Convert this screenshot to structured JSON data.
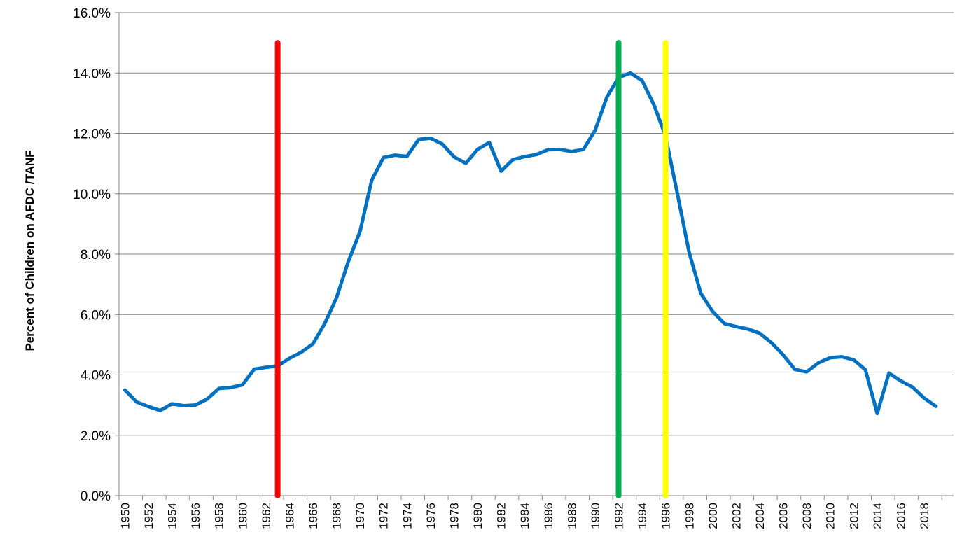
{
  "chart_data": {
    "type": "line",
    "title": "",
    "xlabel": "",
    "ylabel": "Percent of Children on AFDC /TANF",
    "ylim": [
      0,
      16
    ],
    "y_tick_values": [
      0,
      2,
      4,
      6,
      8,
      10,
      12,
      14,
      16
    ],
    "y_tick_labels": [
      "0.0%",
      "2.0%",
      "4.0%",
      "6.0%",
      "8.0%",
      "10.0%",
      "12.0%",
      "14.0%",
      "16.0%"
    ],
    "x_tick_labels": [
      "1950",
      "1952",
      "1954",
      "1956",
      "1958",
      "1960",
      "1962",
      "1964",
      "1966",
      "1968",
      "1970",
      "1972",
      "1974",
      "1976",
      "1978",
      "1980",
      "1982",
      "1984",
      "1986",
      "1988",
      "1990",
      "1992",
      "1994",
      "1996",
      "1998",
      "2000",
      "2002",
      "2004",
      "2006",
      "2008",
      "2010",
      "2012",
      "2014",
      "2016",
      "2018"
    ],
    "grid": "horizontal",
    "series": [
      {
        "color": "#0070C0",
        "x": [
          1950,
          1951,
          1952,
          1953,
          1954,
          1955,
          1956,
          1957,
          1958,
          1959,
          1960,
          1961,
          1962,
          1963,
          1964,
          1965,
          1966,
          1967,
          1968,
          1969,
          1970,
          1971,
          1972,
          1973,
          1974,
          1975,
          1976,
          1977,
          1978,
          1979,
          1980,
          1981,
          1982,
          1983,
          1984,
          1985,
          1986,
          1987,
          1988,
          1989,
          1990,
          1991,
          1992,
          1993,
          1994,
          1995,
          1996,
          1997,
          1998,
          1999,
          2000,
          2001,
          2002,
          2003,
          2004,
          2005,
          2006,
          2007,
          2008,
          2009,
          2010,
          2011,
          2012,
          2013,
          2014,
          2015,
          2016,
          2017,
          2018,
          2019
        ],
        "values": [
          3.5,
          3.1,
          2.95,
          2.82,
          3.04,
          2.98,
          3.0,
          3.2,
          3.55,
          3.58,
          3.67,
          4.19,
          4.25,
          4.3,
          4.55,
          4.75,
          5.03,
          5.7,
          6.55,
          7.75,
          8.75,
          10.45,
          11.2,
          11.28,
          11.24,
          11.8,
          11.84,
          11.65,
          11.22,
          11.01,
          11.47,
          11.7,
          10.75,
          11.13,
          11.23,
          11.3,
          11.46,
          11.47,
          11.4,
          11.47,
          12.1,
          13.2,
          13.85,
          14.0,
          13.75,
          12.95,
          11.9,
          10.0,
          8.05,
          6.7,
          6.1,
          5.7,
          5.6,
          5.52,
          5.38,
          5.07,
          4.66,
          4.18,
          4.1,
          4.4,
          4.57,
          4.6,
          4.5,
          4.17,
          2.72,
          4.06,
          3.8,
          3.6,
          3.23,
          2.96
        ]
      }
    ],
    "vertical_markers": [
      {
        "x": 1963,
        "color": "#FF0000"
      },
      {
        "x": 1992,
        "color": "#00B050"
      },
      {
        "x": 1996,
        "color": "#FFFF00"
      }
    ],
    "marker_top": 15
  }
}
